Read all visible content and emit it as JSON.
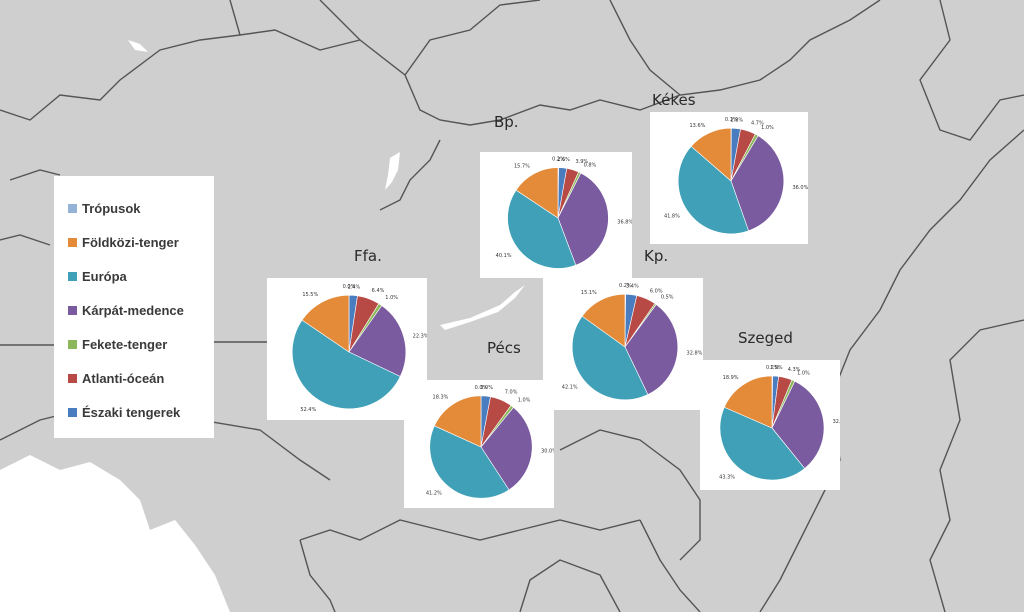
{
  "legend": {
    "items": [
      {
        "label": "Trópusok",
        "color": "#95b3d7"
      },
      {
        "label": "Földközi-tenger",
        "color": "#e48b3a"
      },
      {
        "label": "Európa",
        "color": "#3fa0b8"
      },
      {
        "label": "Kárpát-medence",
        "color": "#7a5ba0"
      },
      {
        "label": "Fekete-tenger",
        "color": "#8cb85a"
      },
      {
        "label": "Atlanti-óceán",
        "color": "#b84a46"
      },
      {
        "label": "Északi tengerek",
        "color": "#4a7dc0"
      }
    ]
  },
  "map": {
    "land_color": "#cfcfcf",
    "border_color": "#555555",
    "water_color": "#ffffff"
  },
  "chart_data": [
    {
      "type": "pie",
      "title": "Bp.",
      "categories": [
        "Trópusok",
        "Földközi-tenger",
        "Európa",
        "Kárpát-medence",
        "Fekete-tenger",
        "Atlanti-óceán",
        "Északi tengerek"
      ],
      "values": [
        0.2,
        15.7,
        40.1,
        36.8,
        0.8,
        3.9,
        2.6
      ],
      "labels": [
        "0.2%",
        "15.7%",
        "40.1%",
        "36.8%",
        "0.8%",
        "3.9%",
        "2.6%"
      ]
    },
    {
      "type": "pie",
      "title": "Kékes",
      "categories": [
        "Trópusok",
        "Földközi-tenger",
        "Európa",
        "Kárpát-medence",
        "Fekete-tenger",
        "Atlanti-óceán",
        "Északi tengerek"
      ],
      "values": [
        0.1,
        13.6,
        41.8,
        36.0,
        1.0,
        4.7,
        2.8
      ],
      "labels": [
        "0.1%",
        "13.6%",
        "41.8%",
        "36.0%",
        "1.0%",
        "4.7%",
        "2.8%"
      ]
    },
    {
      "type": "pie",
      "title": "Ffa.",
      "categories": [
        "Trópusok",
        "Földközi-tenger",
        "Európa",
        "Kárpát-medence",
        "Fekete-tenger",
        "Atlanti-óceán",
        "Északi tengerek"
      ],
      "values": [
        0.0,
        15.5,
        52.4,
        22.3,
        1.0,
        6.4,
        2.4
      ],
      "labels": [
        "0.0%",
        "15.5%",
        "52.4%",
        "22.3%",
        "1.0%",
        "6.4%",
        "2.4%"
      ]
    },
    {
      "type": "pie",
      "title": "Kp.",
      "categories": [
        "Trópusok",
        "Földközi-tenger",
        "Európa",
        "Kárpát-medence",
        "Fekete-tenger",
        "Atlanti-óceán",
        "Északi tengerek"
      ],
      "values": [
        0.2,
        15.1,
        42.1,
        32.8,
        0.5,
        6.0,
        3.4
      ],
      "labels": [
        "0.2%",
        "15.1%",
        "42.1%",
        "32.8%",
        "0.5%",
        "6.0%",
        "3.4%"
      ]
    },
    {
      "type": "pie",
      "title": "Pécs",
      "categories": [
        "Trópusok",
        "Földközi-tenger",
        "Európa",
        "Kárpát-medence",
        "Fekete-tenger",
        "Atlanti-óceán",
        "Északi tengerek"
      ],
      "values": [
        0.0,
        18.3,
        41.2,
        30.0,
        1.0,
        7.0,
        3.0
      ],
      "labels": [
        "0.0%",
        "18.3%",
        "41.2%",
        "30.0%",
        "1.0%",
        "7.0%",
        "3.0%"
      ]
    },
    {
      "type": "pie",
      "title": "Szeged",
      "categories": [
        "Trópusok",
        "Földközi-tenger",
        "Európa",
        "Kárpát-medence",
        "Fekete-tenger",
        "Atlanti-óceán",
        "Északi tengerek"
      ],
      "values": [
        0.2,
        18.9,
        43.3,
        32.7,
        1.0,
        4.3,
        1.9
      ],
      "labels": [
        "0.2%",
        "18.9%",
        "43.3%",
        "32.7%",
        "1.0%",
        "4.3%",
        "1.9%"
      ]
    }
  ]
}
